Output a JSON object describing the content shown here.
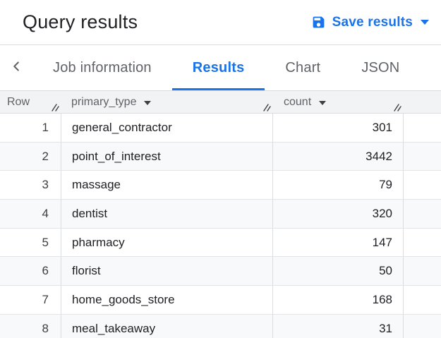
{
  "header": {
    "title": "Query results",
    "save_button_label": "Save results"
  },
  "tabs": {
    "items": [
      {
        "label": "Job information",
        "active": false
      },
      {
        "label": "Results",
        "active": true
      },
      {
        "label": "Chart",
        "active": false
      },
      {
        "label": "JSON",
        "active": false
      }
    ]
  },
  "table": {
    "columns": [
      {
        "key": "row",
        "label": "Row",
        "sortable": false
      },
      {
        "key": "primary_type",
        "label": "primary_type",
        "sortable": true
      },
      {
        "key": "count",
        "label": "count",
        "sortable": true
      }
    ],
    "rows": [
      {
        "row": 1,
        "primary_type": "general_contractor",
        "count": 301
      },
      {
        "row": 2,
        "primary_type": "point_of_interest",
        "count": 3442
      },
      {
        "row": 3,
        "primary_type": "massage",
        "count": 79
      },
      {
        "row": 4,
        "primary_type": "dentist",
        "count": 320
      },
      {
        "row": 5,
        "primary_type": "pharmacy",
        "count": 147
      },
      {
        "row": 6,
        "primary_type": "florist",
        "count": 50
      },
      {
        "row": 7,
        "primary_type": "home_goods_store",
        "count": 168
      },
      {
        "row": 8,
        "primary_type": "meal_takeaway",
        "count": 31
      }
    ]
  },
  "colors": {
    "accent_blue": "#1a73e8",
    "text_dark": "#202124",
    "text_gray": "#5f6368",
    "header_bg": "#f1f3f4",
    "stripe_bg": "#f8f9fa",
    "border": "#dadce0"
  }
}
